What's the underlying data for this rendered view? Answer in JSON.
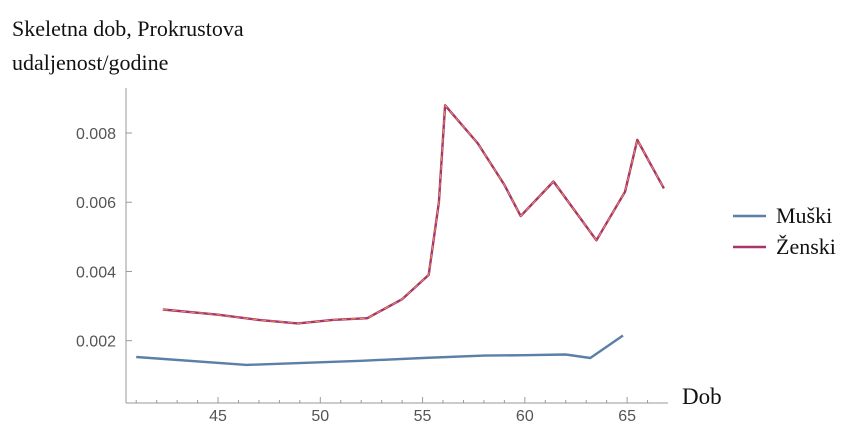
{
  "chart_data": {
    "type": "line",
    "ylabel": [
      "Skeletna dob, Prokrustova",
      "udaljenost/godine"
    ],
    "xlabel": "Dob",
    "xlim": [
      40.5,
      67
    ],
    "ylim": [
      0.0002,
      0.0093
    ],
    "x_ticks": [
      45,
      50,
      55,
      60,
      65
    ],
    "y_ticks": [
      0.002,
      0.004,
      0.006,
      0.008
    ],
    "y_tick_labels": [
      "0.002",
      "0.004",
      "0.006",
      "0.008"
    ],
    "legend_position": "right",
    "series": [
      {
        "name": "Muški",
        "color": "#5b7fa6",
        "x": [
          41,
          46.4,
          52,
          55,
          58,
          60,
          62,
          63.2,
          64.8
        ],
        "y": [
          0.00153,
          0.0013,
          0.00142,
          0.0015,
          0.00157,
          0.00158,
          0.0016,
          0.0015,
          0.00215
        ]
      },
      {
        "name": "Ženski",
        "color": "#a8336e",
        "x": [
          42.3,
          45,
          47,
          48.9,
          50.6,
          52.3,
          54,
          55.3,
          55.8,
          56.1,
          57.7,
          59,
          59.8,
          61.4,
          63.5,
          64.9,
          65.5,
          66.8
        ],
        "y": [
          0.0029,
          0.00275,
          0.0026,
          0.0025,
          0.0026,
          0.00265,
          0.0032,
          0.0039,
          0.006,
          0.0088,
          0.0077,
          0.0065,
          0.0056,
          0.0066,
          0.0049,
          0.0063,
          0.0078,
          0.0064
        ]
      }
    ]
  }
}
